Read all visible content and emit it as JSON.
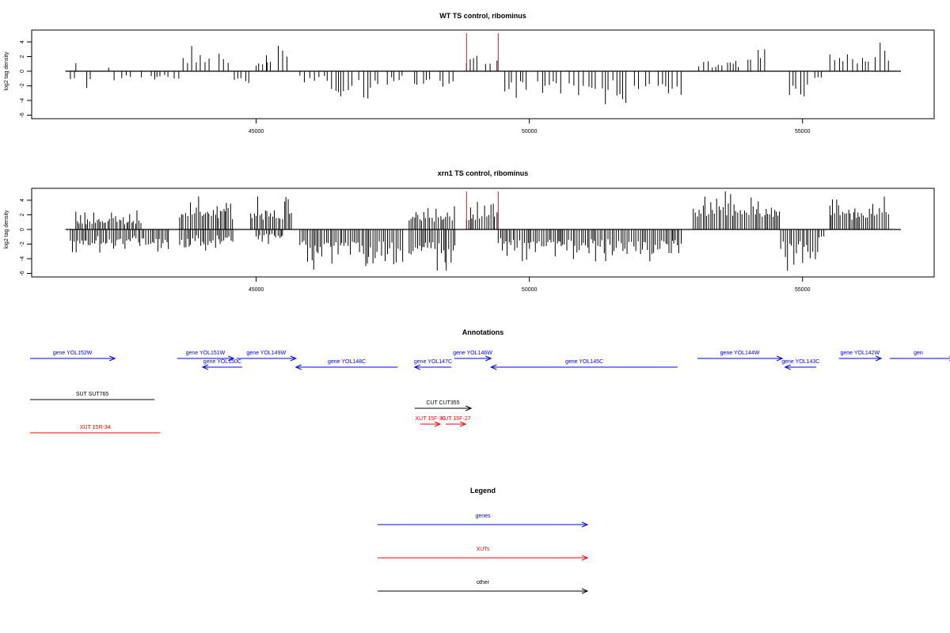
{
  "panels": [
    {
      "title": "WT TS control, ribominus",
      "ylabel": "log2 tag density",
      "xlim": [
        41500,
        56800
      ],
      "ylim": [
        -6,
        5
      ],
      "yticks": [
        -6,
        -4,
        -2,
        0,
        2,
        4
      ],
      "xticks": [
        45000,
        50000,
        55000
      ],
      "highlight_x": [
        48850,
        49430
      ],
      "highlight_color": "#ff0000",
      "segments": [
        {
          "x0": 41600,
          "x1": 41700,
          "sign": -1,
          "max": 2.0
        },
        {
          "x0": 41700,
          "x1": 41800,
          "sign": 1,
          "max": 2.3
        },
        {
          "x0": 41900,
          "x1": 42000,
          "sign": -1,
          "max": 2.8
        },
        {
          "x0": 42300,
          "x1": 42350,
          "sign": 1,
          "max": 1.0
        },
        {
          "x0": 42400,
          "x1": 42700,
          "sign": -1,
          "max": 1.8
        },
        {
          "x0": 42900,
          "x1": 43400,
          "sign": -1,
          "max": 1.5
        },
        {
          "x0": 43500,
          "x1": 43600,
          "sign": -1,
          "max": 2.3
        },
        {
          "x0": 43600,
          "x1": 44600,
          "sign": 1,
          "max": 3.7
        },
        {
          "x0": 44600,
          "x1": 44900,
          "sign": -1,
          "max": 2.5
        },
        {
          "x0": 45000,
          "x1": 45200,
          "sign": 1,
          "max": 2.2
        },
        {
          "x0": 45200,
          "x1": 45650,
          "sign": 1,
          "max": 3.8
        },
        {
          "x0": 45800,
          "x1": 46300,
          "sign": -1,
          "max": 2.0
        },
        {
          "x0": 46300,
          "x1": 47300,
          "sign": -1,
          "max": 4.5
        },
        {
          "x0": 47400,
          "x1": 47700,
          "sign": -1,
          "max": 2.2
        },
        {
          "x0": 47900,
          "x1": 48250,
          "sign": -1,
          "max": 4.0
        },
        {
          "x0": 48300,
          "x1": 48650,
          "sign": -1,
          "max": 3.5
        },
        {
          "x0": 48850,
          "x1": 49430,
          "sign": 1,
          "max": 2.7
        },
        {
          "x0": 49430,
          "x1": 52800,
          "sign": -1,
          "max": 4.5
        },
        {
          "x0": 53100,
          "x1": 54000,
          "sign": 1,
          "max": 2.0
        },
        {
          "x0": 54000,
          "x1": 54500,
          "sign": 1,
          "max": 4.0
        },
        {
          "x0": 54600,
          "x1": 55150,
          "sign": -1,
          "max": 5.3
        },
        {
          "x0": 55150,
          "x1": 55400,
          "sign": -1,
          "max": 1.8
        },
        {
          "x0": 55500,
          "x1": 56600,
          "sign": 1,
          "max": 3.9
        }
      ]
    },
    {
      "title": "xrn1 TS control, ribominus",
      "ylabel": "log2 tag density",
      "xlim": [
        41500,
        56800
      ],
      "ylim": [
        -6,
        5
      ],
      "yticks": [
        -6,
        -4,
        -2,
        0,
        2,
        4
      ],
      "xticks": [
        45000,
        50000,
        55000
      ],
      "highlight_x": [
        48850,
        49430
      ],
      "highlight_color": "#ff0000",
      "segments": [
        {
          "x0": 41600,
          "x1": 43400,
          "sign": -1,
          "max": 3.5
        },
        {
          "x0": 41700,
          "x1": 42900,
          "sign": 1,
          "max": 2.7
        },
        {
          "x0": 43600,
          "x1": 44600,
          "sign": 1,
          "max": 5.0
        },
        {
          "x0": 43600,
          "x1": 44600,
          "sign": -1,
          "max": 3.0
        },
        {
          "x0": 44900,
          "x1": 45650,
          "sign": 1,
          "max": 4.8
        },
        {
          "x0": 45000,
          "x1": 45500,
          "sign": -1,
          "max": 2.0
        },
        {
          "x0": 45800,
          "x1": 47700,
          "sign": -1,
          "max": 5.5
        },
        {
          "x0": 47800,
          "x1": 48650,
          "sign": 1,
          "max": 4.0
        },
        {
          "x0": 47800,
          "x1": 48650,
          "sign": -1,
          "max": 6.0
        },
        {
          "x0": 48850,
          "x1": 49430,
          "sign": 1,
          "max": 4.2
        },
        {
          "x0": 49430,
          "x1": 52800,
          "sign": -1,
          "max": 4.5
        },
        {
          "x0": 53000,
          "x1": 54600,
          "sign": 1,
          "max": 5.2
        },
        {
          "x0": 54600,
          "x1": 55300,
          "sign": -1,
          "max": 5.8
        },
        {
          "x0": 55300,
          "x1": 55400,
          "sign": -1,
          "max": 2.0
        },
        {
          "x0": 55500,
          "x1": 56600,
          "sign": 1,
          "max": 5.0
        }
      ]
    }
  ],
  "annotations": {
    "title": "Annotations",
    "xlim": [
      41500,
      56800
    ],
    "items": [
      {
        "label": "gene YOL152W",
        "start": 41500,
        "end": 43000,
        "dir": 1,
        "row": 0,
        "color": "#0000ff"
      },
      {
        "label": "gene YOL151W",
        "start": 44100,
        "end": 45100,
        "dir": 1,
        "row": 0,
        "color": "#0000ff"
      },
      {
        "label": "gene YOL150C",
        "start": 44550,
        "end": 45250,
        "dir": -1,
        "row": 1,
        "color": "#0000ff"
      },
      {
        "label": "gene YOL149W",
        "start": 45150,
        "end": 46200,
        "dir": 1,
        "row": 0,
        "color": "#0000ff"
      },
      {
        "label": "gene YOL148C",
        "start": 46200,
        "end": 48000,
        "dir": -1,
        "row": 1,
        "color": "#0000ff"
      },
      {
        "label": "gene YOL147C",
        "start": 48300,
        "end": 48950,
        "dir": -1,
        "row": 1,
        "color": "#0000ff"
      },
      {
        "label": "gene YOL146W",
        "start": 49000,
        "end": 49650,
        "dir": 1,
        "row": 0,
        "color": "#0000ff"
      },
      {
        "label": "gene YOL145C",
        "start": 49650,
        "end": 52950,
        "dir": -1,
        "row": 1,
        "color": "#0000ff"
      },
      {
        "label": "gene YOL144W",
        "start": 53300,
        "end": 54800,
        "dir": 1,
        "row": 0,
        "color": "#0000ff"
      },
      {
        "label": "gene YOL143C",
        "start": 54850,
        "end": 55400,
        "dir": -1,
        "row": 1,
        "color": "#0000ff"
      },
      {
        "label": "gene YOL142W",
        "start": 55800,
        "end": 56550,
        "dir": 1,
        "row": 0,
        "color": "#0000ff"
      },
      {
        "label": "gen",
        "start": 56700,
        "end": 58000,
        "dir": 1,
        "row": 0,
        "color": "#0000ff"
      },
      {
        "label": "SUT SUT765",
        "start": 41500,
        "end": 43700,
        "dir": 0,
        "row": 2,
        "color": "#000000"
      },
      {
        "label": "CUT CUT355",
        "start": 48300,
        "end": 49300,
        "dir": 1,
        "row": 3,
        "color": "#000000"
      },
      {
        "label": "XUT 15F-30",
        "start": 48400,
        "end": 48750,
        "dir": 1,
        "row": 4,
        "color": "#ff0000"
      },
      {
        "label": "XUT 15F-27",
        "start": 48850,
        "end": 49200,
        "dir": 1,
        "row": 4,
        "color": "#ff0000"
      },
      {
        "label": "XUT 15R-34",
        "start": 41500,
        "end": 43800,
        "dir": 0,
        "row": 5,
        "color": "#ff0000"
      }
    ]
  },
  "legend": {
    "title": "Legend",
    "items": [
      {
        "label": "genes",
        "color": "#0000ff"
      },
      {
        "label": "XUTs",
        "color": "#ff0000"
      },
      {
        "label": "other",
        "color": "#000000"
      }
    ]
  }
}
